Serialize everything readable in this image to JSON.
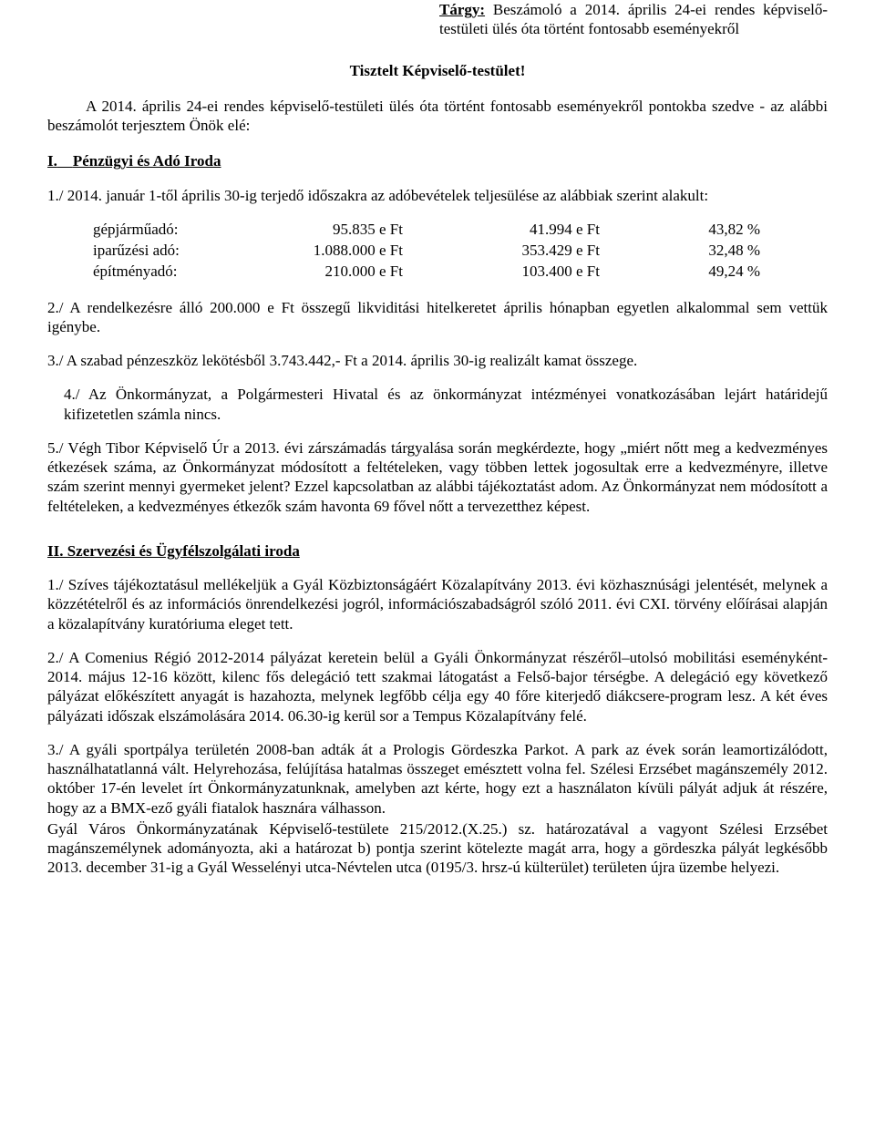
{
  "subject": {
    "label": "Tárgy:",
    "text": "Beszámoló a 2014. április 24-ei rendes képviselő-testületi ülés óta történt fontosabb eseményekről"
  },
  "greeting": "Tisztelt Képviselő-testület!",
  "intro": "A 2014. április 24-ei rendes képviselő-testületi ülés óta történt fontosabb eseményekről pontokba szedve - az alábbi beszámolót terjesztem Önök elé:",
  "sectionI": {
    "number": "I.",
    "title": "Pénzügyi és Adó Iroda",
    "p1": "1./ 2014. január 1-től április 30-ig terjedő időszakra az adóbevételek teljesülése az alábbiak szerint alakult:",
    "table": {
      "rows": [
        {
          "label": "gépjárműadó:",
          "a": "95.835 e Ft",
          "b": "41.994 e Ft",
          "c": "43,82 %"
        },
        {
          "label": "iparűzési adó:",
          "a": "1.088.000 e Ft",
          "b": "353.429 e Ft",
          "c": "32,48 %"
        },
        {
          "label": "építményadó:",
          "a": "210.000 e Ft",
          "b": "103.400 e Ft",
          "c": "49,24 %"
        }
      ]
    },
    "p2": "2./ A rendelkezésre álló 200.000 e Ft összegű likviditási hitelkeretet április  hónapban egyetlen alkalommal sem vettük igénybe.",
    "p3": "3./ A szabad pénzeszköz lekötésből 3.743.442,- Ft a 2014. április 30-ig realizált kamat összege.",
    "p4": "4./ Az Önkormányzat, a Polgármesteri Hivatal és az önkormányzat intézményei vonatkozásában lejárt határidejű kifizetetlen számla nincs.",
    "p5": "5./ Végh Tibor Képviselő Úr a 2013. évi zárszámadás tárgyalása során megkérdezte, hogy „miért nőtt meg a kedvezményes étkezések száma, az Önkormányzat módosított a feltételeken, vagy többen lettek jogosultak erre a kedvezményre, illetve szám szerint mennyi gyermeket jelent? Ezzel kapcsolatban az alábbi tájékoztatást adom. Az Önkormányzat nem módosított a feltételeken, a kedvezményes étkezők szám havonta 69 fővel nőtt a tervezetthez képest."
  },
  "sectionII": {
    "heading": "II. Szervezési és Ügyfélszolgálati iroda",
    "p1": "1./ Szíves tájékoztatásul mellékeljük a Gyál Közbiztonságáért Közalapítvány 2013. évi közhasznúsági jelentését, melynek a közzétételről és az információs önrendelkezési jogról, információszabadságról szóló 2011. évi CXI. törvény előírásai alapján a közalapítvány kuratóriuma eleget tett.",
    "p2": "2./ A Comenius Régió 2012-2014 pályázat keretein belül a Gyáli Önkormányzat részéről–utolsó mobilitási eseményként-2014. május 12-16 között, kilenc fős delegáció tett szakmai látogatást a Felső-bajor térségbe. A delegáció egy következő pályázat előkészített anyagát is hazahozta, melynek legfőbb célja egy 40 főre kiterjedő diákcsere-program lesz.  A két éves pályázati időszak elszámolására 2014. 06.30-ig kerül sor a Tempus Közalapítvány felé.",
    "p3": "3./ A gyáli sportpálya területén 2008-ban adták át a Prologis Gördeszka Parkot. A park az évek során leamortizálódott, használhatatlanná vált. Helyrehozása, felújítása hatalmas összeget emésztett volna fel. Szélesi Erzsébet magánszemély 2012. október 17-én levelet írt Önkormányzatunknak, amelyben azt kérte, hogy ezt a használaton kívüli pályát adjuk át részére, hogy az a BMX-ező gyáli fiatalok hasznára válhasson.",
    "p3b": "Gyál Város Önkormányzatának Képviselő-testülete 215/2012.(X.25.) sz. határozatával a vagyont Szélesi Erzsébet magánszemélynek adományozta, aki a határozat b) pontja szerint kötelezte magát arra, hogy a gördeszka pályát legkésőbb 2013. december 31-ig a Gyál Wesselényi utca-Névtelen utca (0195/3. hrsz-ú külterület) területen újra üzembe helyezi."
  }
}
